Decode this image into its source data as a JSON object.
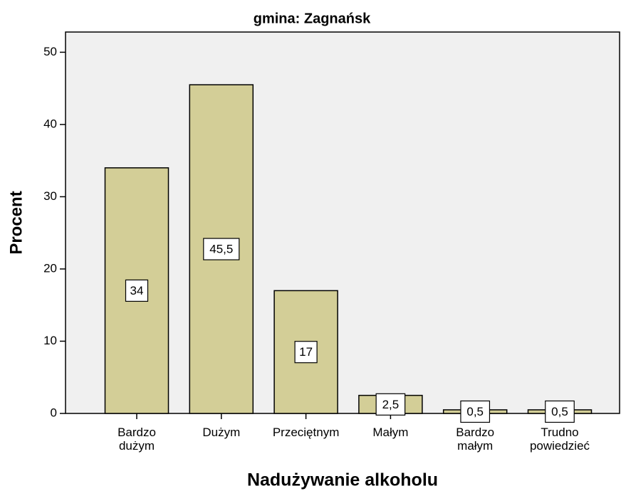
{
  "chart_data": {
    "type": "bar",
    "title": "gmina: Zagnańsk",
    "x_label": "Nadużywanie alkoholu",
    "y_label": "Procent",
    "categories": [
      "Bardzo\ndużym",
      "Dużym",
      "Przeciętnym",
      "Małym",
      "Bardzo\nmałym",
      "Trudno\npowiedzieć"
    ],
    "values": [
      34,
      45.5,
      17,
      2.5,
      0.5,
      0.5
    ],
    "value_labels": [
      "34",
      "45,5",
      "17",
      "2,5",
      "0,5",
      "0,5"
    ],
    "color": "#d3ce97",
    "ylim": [
      0,
      52.8
    ],
    "yticks": [
      0,
      10,
      20,
      30,
      40,
      50
    ],
    "grid": false
  }
}
